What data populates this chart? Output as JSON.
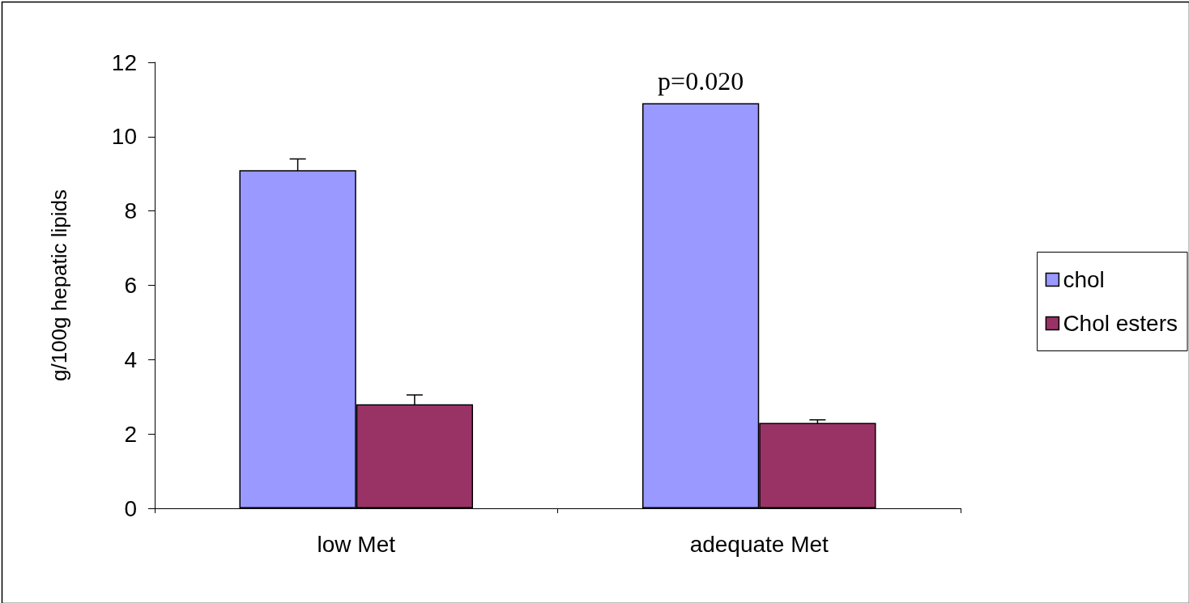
{
  "chart_data": {
    "type": "bar",
    "categories": [
      "low Met",
      "adequate Met"
    ],
    "ylabel": "g/100g hepatic lipids",
    "ylim": [
      0,
      12
    ],
    "yticks": [
      0,
      2,
      4,
      6,
      8,
      10,
      12
    ],
    "grid": false,
    "legend": "right",
    "annotations": [
      {
        "text": "p=0.020",
        "x": "adequate Met",
        "y": 10.9
      }
    ],
    "series": [
      {
        "name": "chol",
        "color": "#9999ff",
        "values": [
          9.1,
          10.9
        ],
        "errors": [
          0.3,
          null
        ]
      },
      {
        "name": "Chol esters",
        "color": "#993366",
        "values": [
          2.8,
          2.3
        ],
        "errors": [
          0.25,
          0.08
        ]
      }
    ]
  }
}
